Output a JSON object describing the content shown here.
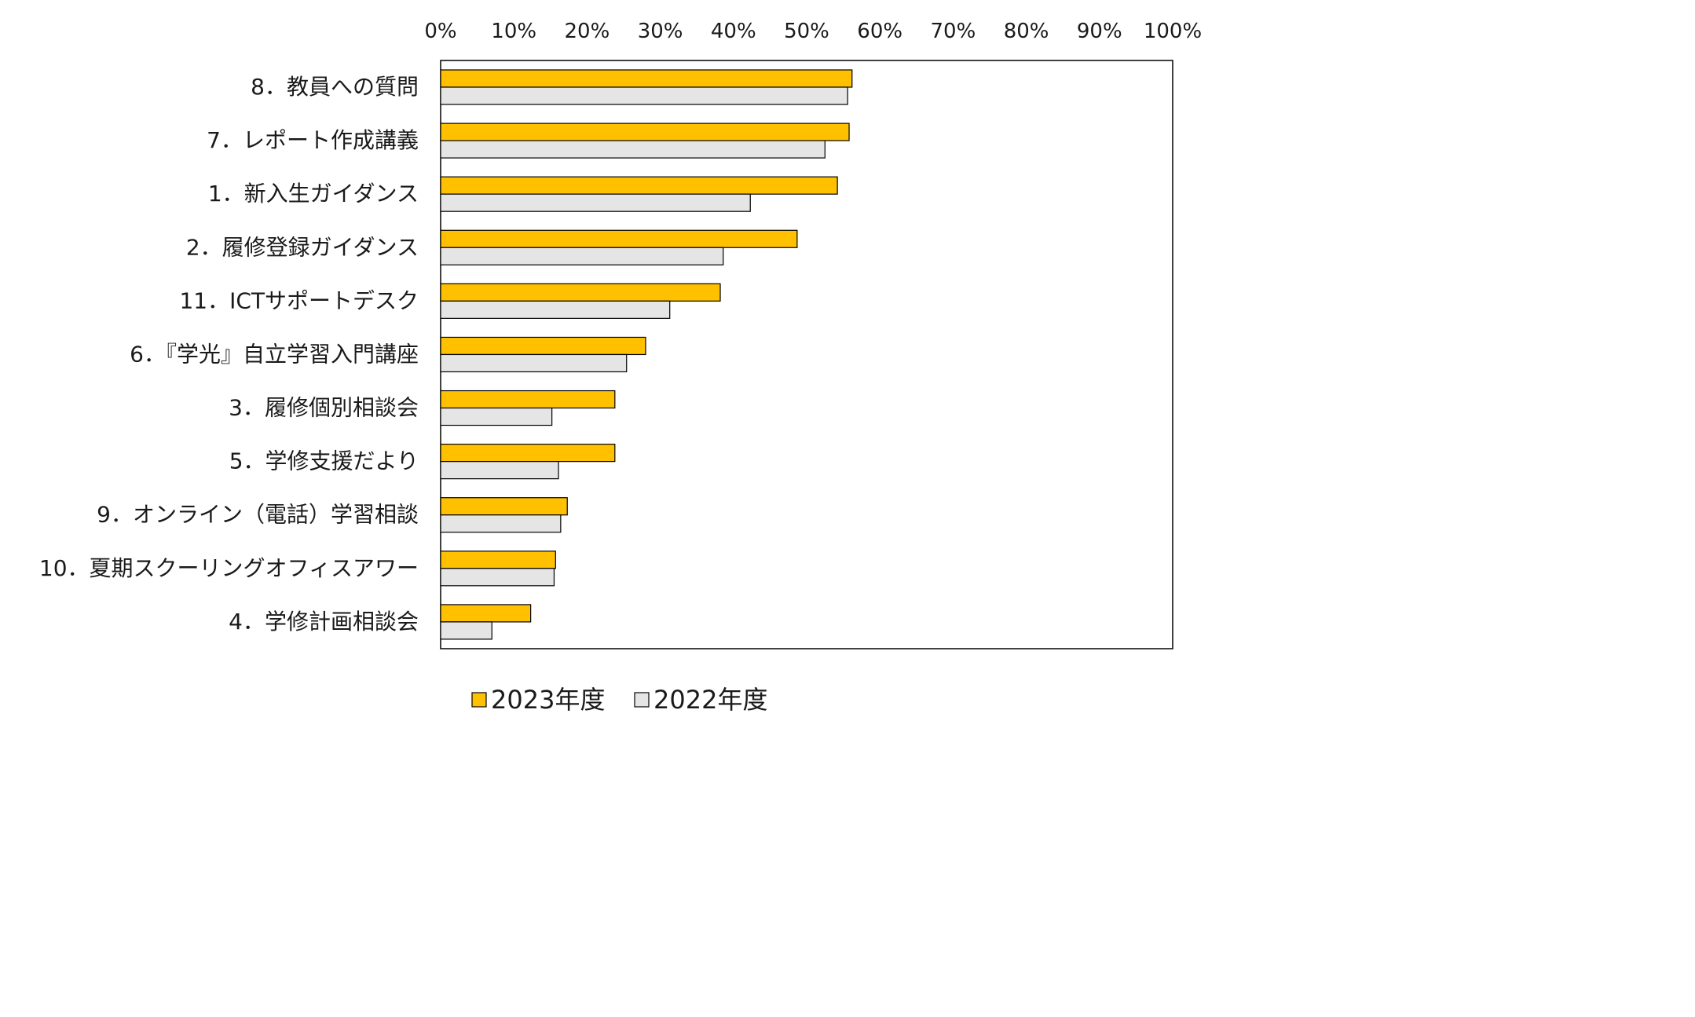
{
  "chart_data": {
    "type": "bar",
    "orientation": "horizontal",
    "categories": [
      "8．教員への質問",
      "7．レポート作成講義",
      "1．新入生ガイダンス",
      "2．履修登録ガイダンス",
      "11．ICTサポートデスク",
      "6．『学光』自立学習入門講座",
      "3．履修個別相談会",
      "5．学修支援だより",
      "9．オンライン（電話）学習相談",
      "10．夏期スクーリングオフィスアワー",
      "4．学修計画相談会"
    ],
    "series": [
      {
        "name": "2023年度",
        "color": "#FFC000",
        "values": [
          56.2,
          55.8,
          54.2,
          48.7,
          38.2,
          28.0,
          23.8,
          23.8,
          17.3,
          15.7,
          12.3
        ]
      },
      {
        "name": "2022年度",
        "color": "#E5E5E5",
        "values": [
          55.6,
          52.5,
          42.3,
          38.6,
          31.3,
          25.4,
          15.2,
          16.1,
          16.4,
          15.5,
          7.0
        ]
      }
    ],
    "xlim": [
      0,
      100
    ],
    "x_ticks": [
      "0%",
      "10%",
      "20%",
      "30%",
      "40%",
      "50%",
      "60%",
      "70%",
      "80%",
      "90%",
      "100%"
    ],
    "x_axis_position": "top",
    "grid": false,
    "legend_position": "bottom",
    "title": "",
    "xlabel": "",
    "ylabel": ""
  }
}
